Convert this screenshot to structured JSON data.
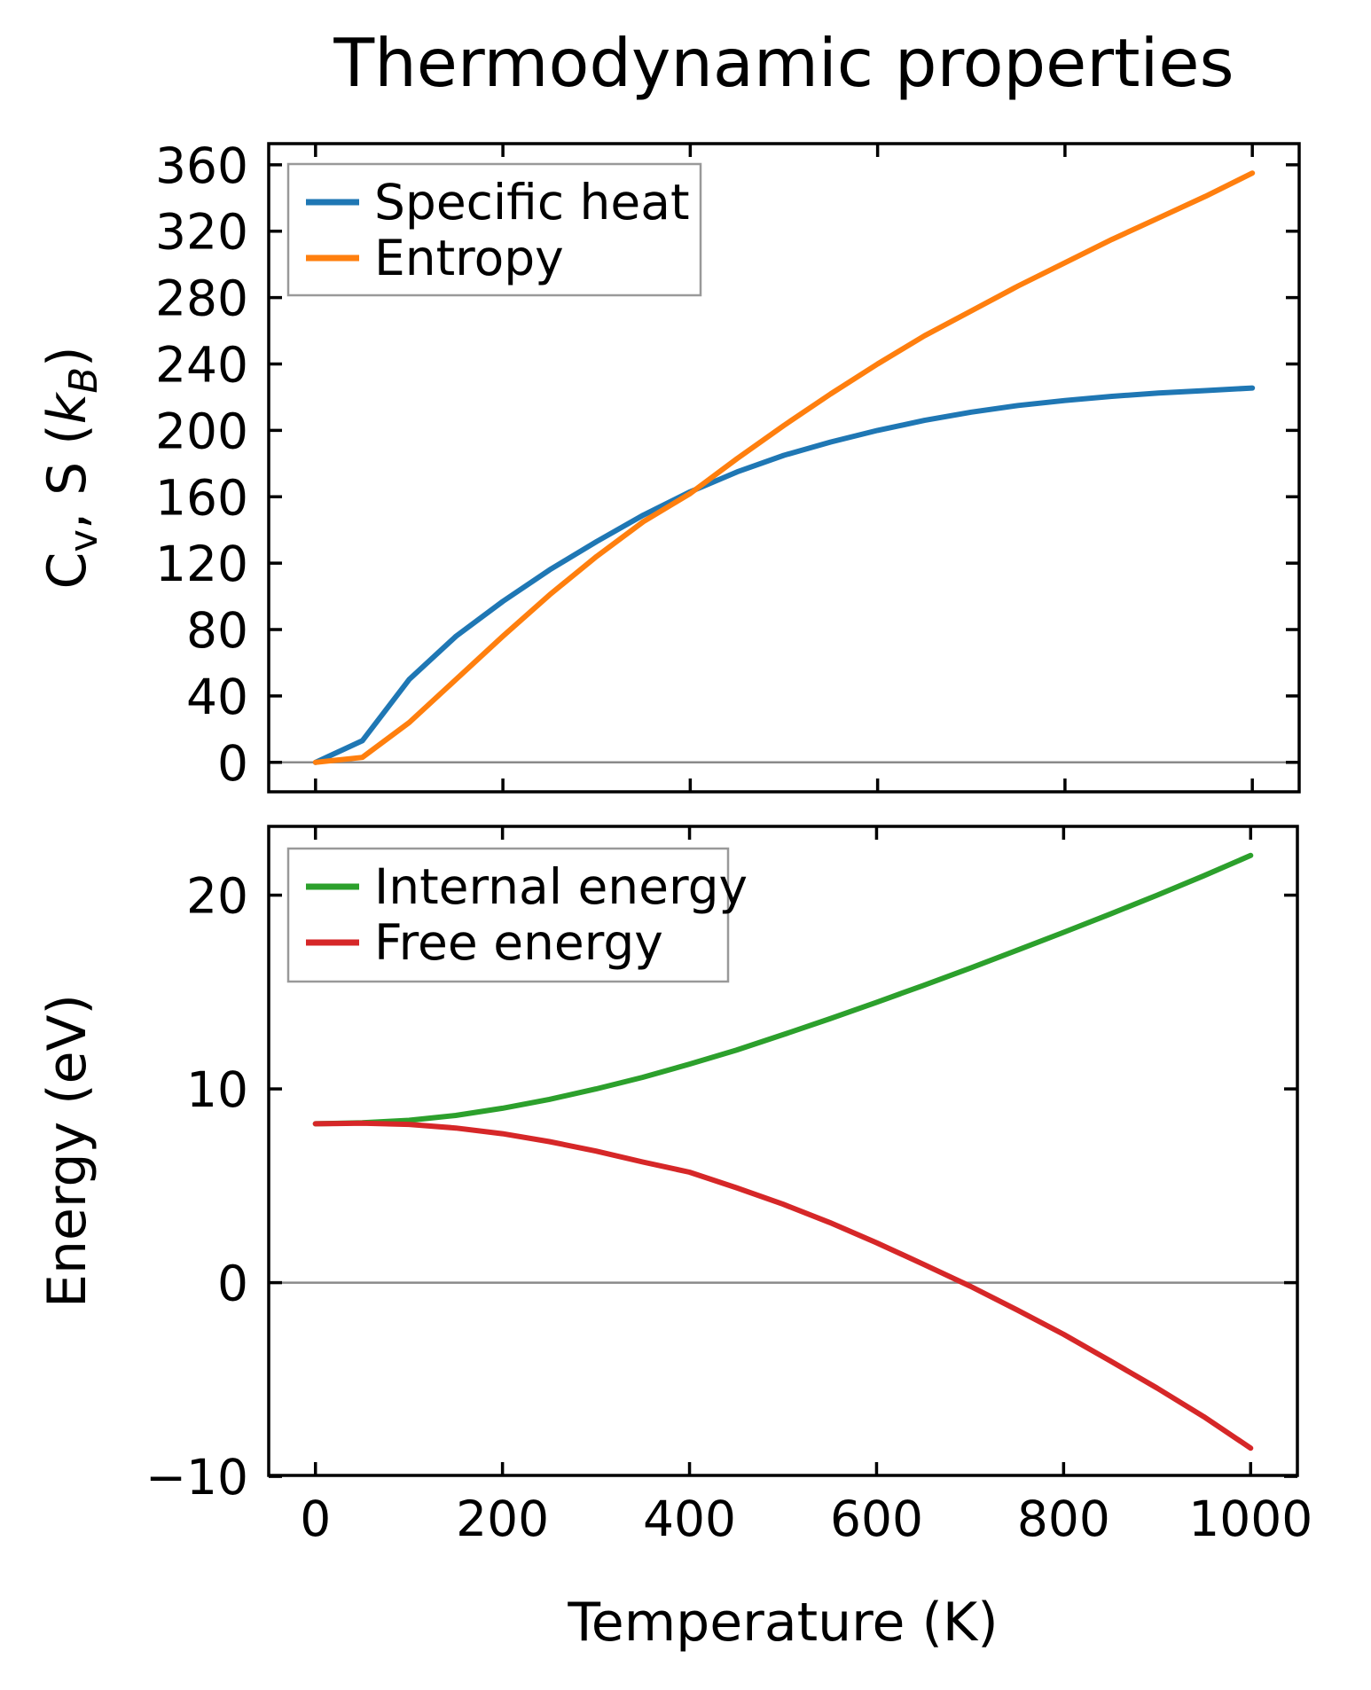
{
  "title": "Thermodynamic properties",
  "colors": {
    "specific_heat": "#1f77b4",
    "entropy": "#ff7f0e",
    "internal_energy": "#2ca02c",
    "free_energy": "#d62728",
    "zero_line": "#8a8a8a",
    "legend_border": "#999999",
    "spine": "#000000"
  },
  "chart_data": [
    {
      "type": "line",
      "title": "Thermodynamic properties",
      "ylabel": "Cv, S (kB)",
      "ylabel_parts": [
        {
          "t": "C"
        },
        {
          "t": "v",
          "sub": true
        },
        {
          "t": ", S ("
        },
        {
          "t": "k",
          "italic": true
        },
        {
          "t": "B",
          "sub": true,
          "italic": true
        },
        {
          "t": ")"
        }
      ],
      "xlabel": "",
      "x": [
        0,
        50,
        100,
        150,
        200,
        250,
        300,
        350,
        400,
        450,
        500,
        550,
        600,
        650,
        700,
        750,
        800,
        850,
        900,
        950,
        1000
      ],
      "series": [
        {
          "name": "Specific heat",
          "color": "#1f77b4",
          "values": [
            0,
            13,
            50,
            76,
            97,
            116,
            133,
            149,
            163,
            175,
            185,
            193,
            200,
            206,
            211,
            215,
            218,
            220.5,
            222.5,
            224,
            225.5
          ]
        },
        {
          "name": "Entropy",
          "color": "#ff7f0e",
          "values": [
            0,
            3,
            24,
            50,
            76,
            101,
            124,
            145,
            162,
            183,
            203,
            222,
            240,
            257,
            272,
            287,
            301,
            315,
            328,
            341,
            355
          ]
        }
      ],
      "xlim": [
        -50,
        1050
      ],
      "ylim": [
        -17.75,
        372.75
      ],
      "xticks": [
        0,
        200,
        400,
        600,
        800,
        1000
      ],
      "yticks": [
        0,
        40,
        80,
        120,
        160,
        200,
        240,
        280,
        320,
        360
      ],
      "x_tick_labels_visible": false,
      "zero_line": 0,
      "grid": false,
      "legend_position": "upper left"
    },
    {
      "type": "line",
      "title": "",
      "ylabel": "Energy (eV)",
      "xlabel": "Temperature (K)",
      "x": [
        0,
        50,
        100,
        150,
        200,
        250,
        300,
        350,
        400,
        450,
        500,
        550,
        600,
        650,
        700,
        750,
        800,
        850,
        900,
        950,
        1000
      ],
      "series": [
        {
          "name": "Internal energy",
          "color": "#2ca02c",
          "values": [
            8.2,
            8.25,
            8.38,
            8.63,
            9.0,
            9.46,
            10.0,
            10.6,
            11.28,
            12.0,
            12.8,
            13.62,
            14.47,
            15.34,
            16.23,
            17.15,
            18.08,
            19.03,
            20.0,
            21.0,
            22.05
          ]
        },
        {
          "name": "Free energy",
          "color": "#d62728",
          "values": [
            8.2,
            8.23,
            8.17,
            7.98,
            7.69,
            7.28,
            6.79,
            6.23,
            5.7,
            4.9,
            4.05,
            3.1,
            2.06,
            0.95,
            -0.18,
            -1.4,
            -2.67,
            -4.04,
            -5.44,
            -6.92,
            -8.54
          ]
        }
      ],
      "xlim": [
        -50,
        1050
      ],
      "ylim": [
        -9.95,
        23.55
      ],
      "xticks": [
        0,
        200,
        400,
        600,
        800,
        1000
      ],
      "yticks": [
        -10,
        0,
        10,
        20
      ],
      "x_tick_labels_visible": true,
      "zero_line": 0,
      "grid": false,
      "legend_position": "upper left"
    }
  ]
}
